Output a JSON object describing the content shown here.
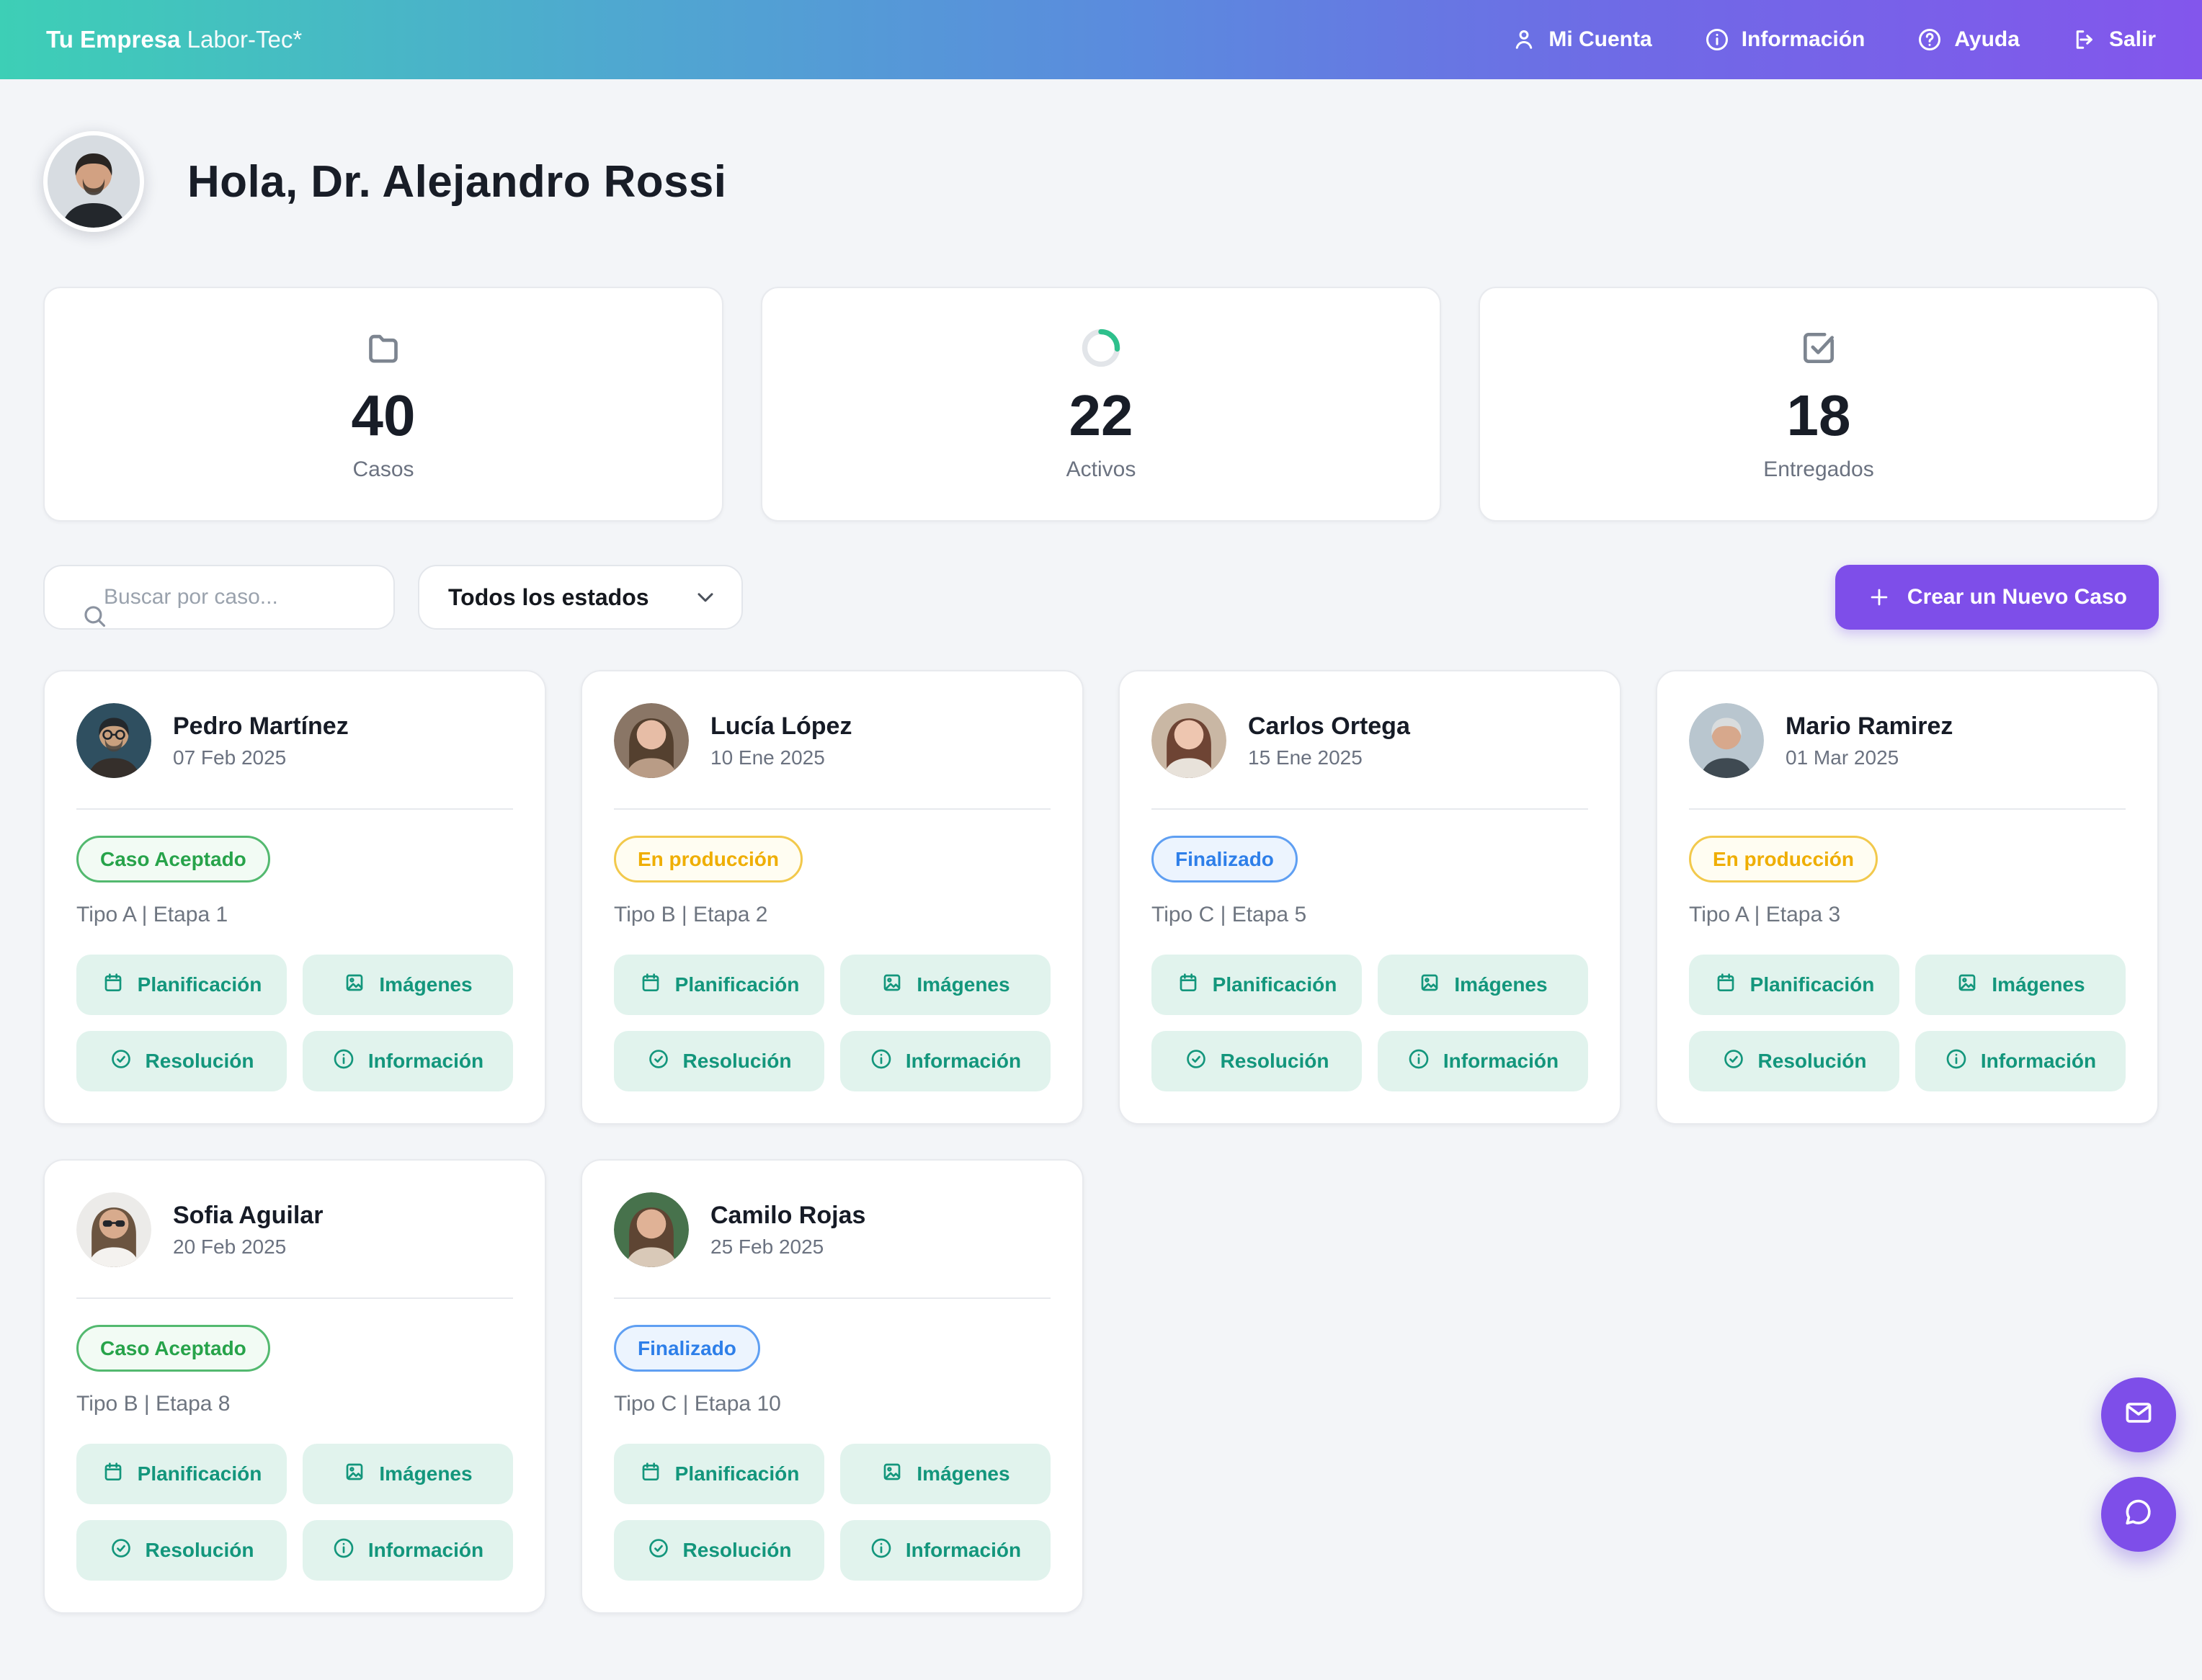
{
  "header": {
    "brand_bold": "Tu Empresa",
    "brand_light": "Labor-Tec*",
    "nav": [
      {
        "key": "mi-cuenta",
        "label": "Mi Cuenta",
        "icon": "user-icon"
      },
      {
        "key": "informacion",
        "label": "Información",
        "icon": "info-icon"
      },
      {
        "key": "ayuda",
        "label": "Ayuda",
        "icon": "help-icon"
      },
      {
        "key": "salir",
        "label": "Salir",
        "icon": "logout-icon"
      }
    ]
  },
  "greeting": {
    "title": "Hola, Dr. Alejandro Rossi",
    "avatar": {
      "bg": "#d7dce1",
      "skin": "#d2a182",
      "hair": "#2a2522",
      "shirt": "#23272c",
      "beard": "#3a3028"
    }
  },
  "stats": [
    {
      "key": "casos",
      "icon": "folder-icon",
      "value": "40",
      "label": "Casos"
    },
    {
      "key": "activos",
      "icon": "progress-ring-icon",
      "value": "22",
      "label": "Activos"
    },
    {
      "key": "entregados",
      "icon": "check-square-icon",
      "value": "18",
      "label": "Entregados"
    }
  ],
  "toolbar": {
    "search_placeholder": "Buscar por caso...",
    "status_filter_value": "Todos los estados",
    "create_button_label": "Crear un Nuevo Caso",
    "create_button_color": "#7e4ee9"
  },
  "statuses": {
    "accepted": {
      "label": "Caso Aceptado",
      "text": "#27a34a",
      "border": "#53b96f",
      "bg": "#f2fbf4"
    },
    "production": {
      "label": "En producción",
      "text": "#efae02",
      "border": "#f2c94c",
      "bg": "#fffdf2"
    },
    "finished": {
      "label": "Finalizado",
      "text": "#2e7fe9",
      "border": "#5f9ff2",
      "bg": "#ecf4fe"
    }
  },
  "case_actions": [
    {
      "key": "planificacion",
      "label": "Planificación",
      "icon": "calendar-icon"
    },
    {
      "key": "imagenes",
      "label": "Imágenes",
      "icon": "image-icon"
    },
    {
      "key": "resolucion",
      "label": "Resolución",
      "icon": "check-circle-icon"
    },
    {
      "key": "informacion",
      "label": "Información",
      "icon": "info-icon"
    }
  ],
  "cases": [
    {
      "name": "Pedro Martínez",
      "date": "07 Feb 2025",
      "status": "accepted",
      "meta": "Tipo A | Etapa 1",
      "avatar": {
        "bg": "#2f4f60",
        "skin": "#c9a07e",
        "hair": "#24282c",
        "shirt": "#352f2b",
        "glasses": true,
        "beard": "#4a443e"
      }
    },
    {
      "name": "Lucía López",
      "date": "10 Ene 2025",
      "status": "production",
      "meta": "Tipo B | Etapa 2",
      "avatar": {
        "bg": "#8a7666",
        "skin": "#e7bda6",
        "hair": "#54402f",
        "shirt": "#b99c86",
        "longHair": true
      }
    },
    {
      "name": "Carlos Ortega",
      "date": "15 Ene 2025",
      "status": "finished",
      "meta": "Tipo C | Etapa 5",
      "avatar": {
        "bg": "#c9b7a4",
        "skin": "#eec6b0",
        "hair": "#6e4434",
        "shirt": "#e8e2da",
        "longHair": true
      }
    },
    {
      "name": "Mario Ramirez",
      "date": "01 Mar 2025",
      "status": "production",
      "meta": "Tipo A | Etapa 3",
      "avatar": {
        "bg": "#b9c6cf",
        "skin": "#d7a88c",
        "hair": "#d9dcdd",
        "shirt": "#3f4a52"
      }
    },
    {
      "name": "Sofia Aguilar",
      "date": "20 Feb 2025",
      "status": "accepted",
      "meta": "Tipo B | Etapa 8",
      "avatar": {
        "bg": "#ecebe9",
        "skin": "#d8ab8d",
        "hair": "#6b5440",
        "shirt": "#f4f2ef",
        "longHair": true,
        "sunglasses": true
      }
    },
    {
      "name": "Camilo Rojas",
      "date": "25 Feb 2025",
      "status": "finished",
      "meta": "Tipo C | Etapa 10",
      "avatar": {
        "bg": "#47724c",
        "skin": "#e0b296",
        "hair": "#5e4533",
        "shirt": "#d9c9b8",
        "longHair": true
      }
    }
  ],
  "fabs": [
    {
      "key": "mail",
      "icon": "mail-icon"
    },
    {
      "key": "chat",
      "icon": "chat-icon"
    }
  ]
}
